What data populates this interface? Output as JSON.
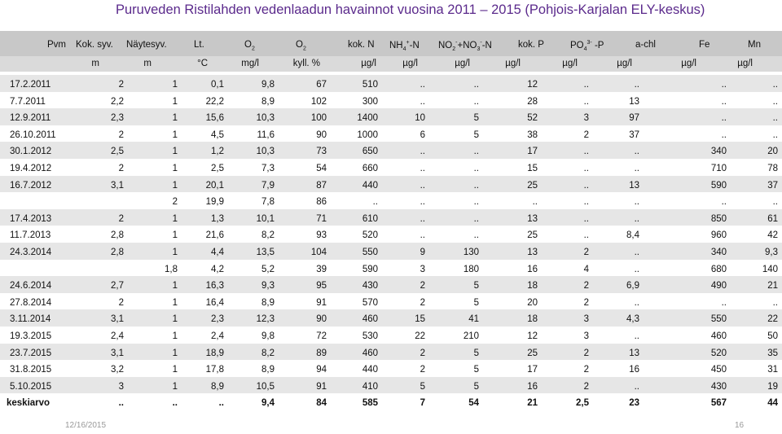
{
  "title": "Puruveden Ristilahden vedenlaadun havainnot vuosina 2011 – 2015 (Pohjois-Karjalan ELY-keskus)",
  "headers": {
    "pvm": "Pvm",
    "kok_syv": "Kok. syv.",
    "nayte": "Näytesyv.",
    "lt": "Lt.",
    "o2a": "O",
    "o2a_sub": "2",
    "o2b": "O",
    "o2b_sub": "2",
    "kokn": "kok. N",
    "nh4": "NH",
    "nh4_sub": "4",
    "nh4_sup": "+",
    "nh4_tail": "-N",
    "no": "NO",
    "no_sub1": "2",
    "no_sup1": "-",
    "no_mid": "+NO",
    "no_sub2": "3",
    "no_sup2": "-",
    "no_tail": "-N",
    "kokp": "kok. P",
    "po4": "PO",
    "po4_sub": "4",
    "po4_sup": "3-",
    "po4_tail": " -P",
    "achl": "a-chl",
    "fe": "Fe",
    "mn": "Mn"
  },
  "units": [
    "m",
    "m",
    "°C",
    "mg/l",
    "kyll. %",
    "µg/l",
    "µg/l",
    "µg/l",
    "µg/l",
    "µg/l",
    "µg/l",
    "µg/l",
    "µg/l"
  ],
  "rows": [
    [
      "17.2.2011",
      "2",
      "1",
      "0,1",
      "9,8",
      "67",
      "510",
      "..",
      "..",
      "12",
      "..",
      "..",
      "..",
      ".."
    ],
    [
      "7.7.2011",
      "2,2",
      "1",
      "22,2",
      "8,9",
      "102",
      "300",
      "..",
      "..",
      "28",
      "..",
      "13",
      "..",
      ".."
    ],
    [
      "12.9.2011",
      "2,3",
      "1",
      "15,6",
      "10,3",
      "100",
      "1400",
      "10",
      "5",
      "52",
      "3",
      "97",
      "..",
      ".."
    ],
    [
      "26.10.2011",
      "2",
      "1",
      "4,5",
      "11,6",
      "90",
      "1000",
      "6",
      "5",
      "38",
      "2",
      "37",
      "..",
      ".."
    ],
    [
      "30.1.2012",
      "2,5",
      "1",
      "1,2",
      "10,3",
      "73",
      "650",
      "..",
      "..",
      "17",
      "..",
      "..",
      "340",
      "20"
    ],
    [
      "19.4.2012",
      "2",
      "1",
      "2,5",
      "7,3",
      "54",
      "660",
      "..",
      "..",
      "15",
      "..",
      "..",
      "710",
      "78"
    ],
    [
      "16.7.2012",
      "3,1",
      "1",
      "20,1",
      "7,9",
      "87",
      "440",
      "..",
      "..",
      "25",
      "..",
      "13",
      "590",
      "37"
    ],
    [
      "",
      "",
      "2",
      "19,9",
      "7,8",
      "86",
      "..",
      "..",
      "..",
      "..",
      "..",
      "..",
      "..",
      ".."
    ],
    [
      "17.4.2013",
      "2",
      "1",
      "1,3",
      "10,1",
      "71",
      "610",
      "..",
      "..",
      "13",
      "..",
      "..",
      "850",
      "61"
    ],
    [
      "11.7.2013",
      "2,8",
      "1",
      "21,6",
      "8,2",
      "93",
      "520",
      "..",
      "..",
      "25",
      "..",
      "8,4",
      "960",
      "42"
    ],
    [
      "24.3.2014",
      "2,8",
      "1",
      "4,4",
      "13,5",
      "104",
      "550",
      "9",
      "130",
      "13",
      "2",
      "..",
      "340",
      "9,3"
    ],
    [
      "",
      "",
      "1,8",
      "4,2",
      "5,2",
      "39",
      "590",
      "3",
      "180",
      "16",
      "4",
      "..",
      "680",
      "140"
    ],
    [
      "24.6.2014",
      "2,7",
      "1",
      "16,3",
      "9,3",
      "95",
      "430",
      "2",
      "5",
      "18",
      "2",
      "6,9",
      "490",
      "21"
    ],
    [
      "27.8.2014",
      "2",
      "1",
      "16,4",
      "8,9",
      "91",
      "570",
      "2",
      "5",
      "20",
      "2",
      "..",
      "..",
      ".."
    ],
    [
      "3.11.2014",
      "3,1",
      "1",
      "2,3",
      "12,3",
      "90",
      "460",
      "15",
      "41",
      "18",
      "3",
      "4,3",
      "550",
      "22"
    ],
    [
      "19.3.2015",
      "2,4",
      "1",
      "2,4",
      "9,8",
      "72",
      "530",
      "22",
      "210",
      "12",
      "3",
      "..",
      "460",
      "50"
    ],
    [
      "23.7.2015",
      "3,1",
      "1",
      "18,9",
      "8,2",
      "89",
      "460",
      "2",
      "5",
      "25",
      "2",
      "13",
      "520",
      "35"
    ],
    [
      "31.8.2015",
      "3,2",
      "1",
      "17,8",
      "8,9",
      "94",
      "440",
      "2",
      "5",
      "17",
      "2",
      "16",
      "450",
      "31"
    ],
    [
      "5.10.2015",
      "3",
      "1",
      "8,9",
      "10,5",
      "91",
      "410",
      "5",
      "5",
      "16",
      "2",
      "..",
      "430",
      "19"
    ]
  ],
  "summary": [
    "keskiarvo",
    "..",
    "..",
    "..",
    "9,4",
    "84",
    "585",
    "7",
    "54",
    "21",
    "2,5",
    "23",
    "567",
    "44"
  ],
  "footer": {
    "date": "12/16/2015",
    "page": "16"
  },
  "colors": {
    "title": "#5b2a8c",
    "header_band": "#c8c8c8",
    "unit_band": "#dadada",
    "stripe": "#e6e6e6"
  }
}
